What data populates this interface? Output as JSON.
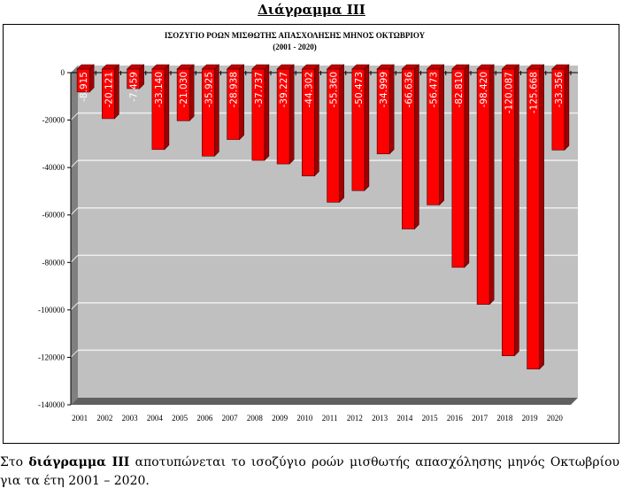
{
  "heading": "Διάγραμμα ΙΙΙ",
  "caption": {
    "prefix": "Στο ",
    "bold": "διάγραμμα ΙΙΙ",
    "rest": " αποτυπώνεται το ισοζύγιο ροών μισθωτής απασχόλησης μηνός Οκτωβρίου για τα έτη 2001 – 2020."
  },
  "chart_data": {
    "type": "bar",
    "title": "ΙΣΟΖΥΓΙΟ ΡΟΩΝ ΜΙΣΘΩΤΗΣ ΑΠΑΣΧΟΛΗΣΗΣ ΜΗΝΟΣ  ΟΚΤΩΒΡΙΟΥ",
    "subtitle": "(2001 - 2020)",
    "categories": [
      "2001",
      "2002",
      "2003",
      "2004",
      "2005",
      "2006",
      "2007",
      "2008",
      "2009",
      "2010",
      "2011",
      "2012",
      "2013",
      "2014",
      "2015",
      "2016",
      "2017",
      "2018",
      "2019",
      "2020"
    ],
    "values": [
      -8915,
      -20121,
      -7459,
      -33140,
      -21030,
      -35925,
      -28938,
      -37737,
      -39227,
      -44302,
      -55360,
      -50473,
      -34999,
      -66636,
      -56473,
      -82810,
      -98420,
      -120087,
      -125668,
      -33356
    ],
    "labels": [
      "-8.915",
      "-20.121",
      "-7.459",
      "-33.140",
      "-21.030",
      "-35.925",
      "-28.938",
      "-37.737",
      "-39.227",
      "-44.302",
      "-55.360",
      "-50.473",
      "-34.999",
      "-66.636",
      "-56.473",
      "-82.810",
      "-98.420",
      "-120.087",
      "-125.668",
      "-33.356"
    ],
    "yticks": [
      "0",
      "-20000",
      "-40000",
      "-60000",
      "-80000",
      "-100000",
      "-120000",
      "-140000"
    ],
    "ylim": [
      -140000,
      0
    ],
    "grid": true,
    "bar_color": "#ff0000",
    "wall_color": "#c0c0c0"
  }
}
